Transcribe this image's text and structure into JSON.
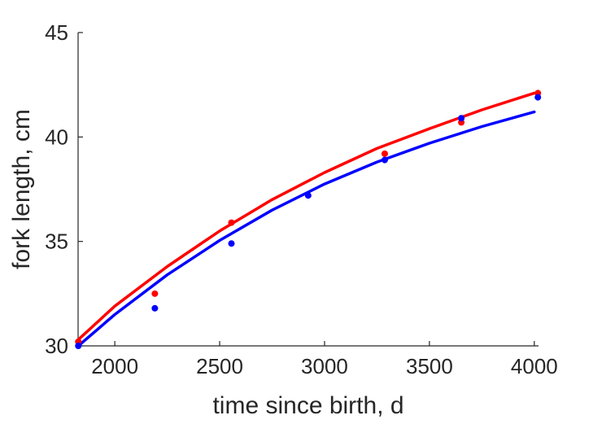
{
  "chart_data": {
    "type": "scatter",
    "xlabel": "time since birth, d",
    "ylabel": "fork length, cm",
    "xlim": [
      1825,
      4020
    ],
    "ylim": [
      30,
      45
    ],
    "x_ticks": [
      2000,
      2500,
      3000,
      3500,
      4000
    ],
    "y_ticks": [
      30,
      35,
      40,
      45
    ],
    "grid": false,
    "legend": "none",
    "series": [
      {
        "color": "#ff0000",
        "points": [
          {
            "x": 1826,
            "y": 30.2
          },
          {
            "x": 2191,
            "y": 32.5
          },
          {
            "x": 2556,
            "y": 35.9
          },
          {
            "x": 3287,
            "y": 39.2
          },
          {
            "x": 3652,
            "y": 40.7
          },
          {
            "x": 4017,
            "y": 42.1
          }
        ],
        "fit": [
          {
            "x": 1826,
            "y": 30.3
          },
          {
            "x": 2000,
            "y": 31.9
          },
          {
            "x": 2250,
            "y": 33.8
          },
          {
            "x": 2500,
            "y": 35.5
          },
          {
            "x": 2750,
            "y": 37.0
          },
          {
            "x": 3000,
            "y": 38.3
          },
          {
            "x": 3250,
            "y": 39.45
          },
          {
            "x": 3500,
            "y": 40.4
          },
          {
            "x": 3750,
            "y": 41.3
          },
          {
            "x": 4000,
            "y": 42.1
          }
        ]
      },
      {
        "color": "#0000ff",
        "points": [
          {
            "x": 1826,
            "y": 30.0
          },
          {
            "x": 2191,
            "y": 31.8
          },
          {
            "x": 2556,
            "y": 34.9
          },
          {
            "x": 2922,
            "y": 37.2
          },
          {
            "x": 3287,
            "y": 38.9
          },
          {
            "x": 3652,
            "y": 40.9
          },
          {
            "x": 4017,
            "y": 41.9
          }
        ],
        "fit": [
          {
            "x": 1826,
            "y": 30.0
          },
          {
            "x": 2000,
            "y": 31.5
          },
          {
            "x": 2250,
            "y": 33.4
          },
          {
            "x": 2500,
            "y": 35.05
          },
          {
            "x": 2750,
            "y": 36.5
          },
          {
            "x": 3000,
            "y": 37.75
          },
          {
            "x": 3250,
            "y": 38.8
          },
          {
            "x": 3500,
            "y": 39.7
          },
          {
            "x": 3750,
            "y": 40.5
          },
          {
            "x": 4000,
            "y": 41.2
          }
        ]
      }
    ]
  }
}
